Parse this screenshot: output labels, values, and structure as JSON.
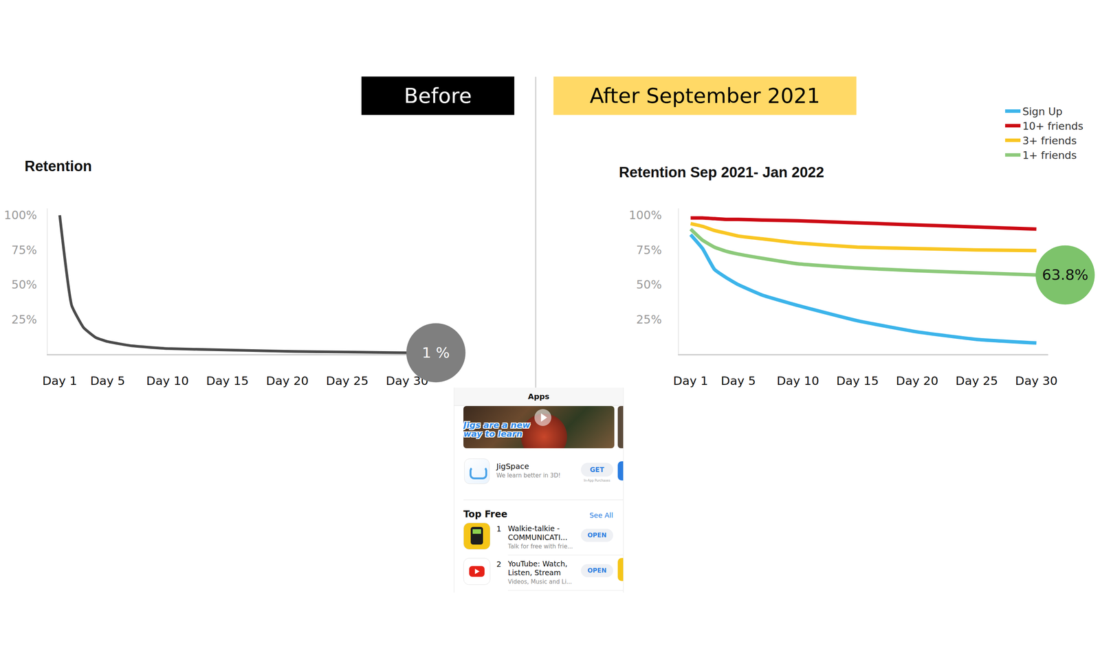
{
  "chart_data": [
    {
      "type": "line",
      "header": "Before",
      "title": "Retention",
      "x": [
        1,
        2,
        3,
        4,
        5,
        7,
        10,
        15,
        20,
        25,
        30
      ],
      "values": [
        100,
        35,
        19,
        12,
        9,
        6,
        4,
        3,
        2,
        1.5,
        1
      ],
      "color": "#4a4a4a",
      "xlim": [
        0,
        31
      ],
      "xticks": [
        {
          "value": 1,
          "label": "Day 1"
        },
        {
          "value": 5,
          "label": "Day 5"
        },
        {
          "value": 10,
          "label": "Day 10"
        },
        {
          "value": 15,
          "label": "Day 15"
        },
        {
          "value": 20,
          "label": "Day 20"
        },
        {
          "value": 25,
          "label": "Day 25"
        },
        {
          "value": 30,
          "label": "Day 30"
        }
      ],
      "ylim": [
        0,
        105
      ],
      "yticks": [
        {
          "value": 25,
          "label": "25%"
        },
        {
          "value": 50,
          "label": "50%"
        },
        {
          "value": 75,
          "label": "75%"
        },
        {
          "value": 100,
          "label": "100%"
        }
      ],
      "grid": false,
      "annotations": [
        {
          "text": "1 %",
          "color": "#7f7f7f"
        }
      ]
    },
    {
      "type": "line",
      "header": "After September 2021",
      "title": "Retention Sep 2021- Jan 2022",
      "x": [
        1,
        2,
        3,
        4,
        5,
        7,
        10,
        15,
        20,
        25,
        30
      ],
      "series": [
        {
          "name": "Sign Up",
          "color": "#3cb4ea",
          "values": [
            86,
            76,
            61,
            55,
            50,
            42.5,
            35,
            24,
            16,
            10.6,
            8
          ]
        },
        {
          "name": "10+ friends",
          "color": "#cc0a14",
          "values": [
            98,
            98,
            97.5,
            97,
            97,
            96.5,
            96,
            94.5,
            93,
            91.5,
            90
          ]
        },
        {
          "name": "3+ friends",
          "color": "#f9c623",
          "values": [
            94,
            92,
            89,
            87,
            85,
            83,
            80,
            77,
            76,
            75,
            74.5
          ]
        },
        {
          "name": "1+ friends",
          "color": "#8cc97a",
          "values": [
            90,
            82,
            77,
            74,
            72,
            69,
            65,
            62,
            60,
            58.5,
            57
          ]
        }
      ],
      "xlim": [
        0,
        31
      ],
      "xticks": [
        {
          "value": 1,
          "label": "Day 1"
        },
        {
          "value": 5,
          "label": "Day 5"
        },
        {
          "value": 10,
          "label": "Day 10"
        },
        {
          "value": 15,
          "label": "Day 15"
        },
        {
          "value": 20,
          "label": "Day 20"
        },
        {
          "value": 25,
          "label": "Day 25"
        },
        {
          "value": 30,
          "label": "Day 30"
        }
      ],
      "ylim": [
        0,
        105
      ],
      "yticks": [
        {
          "value": 25,
          "label": "25%"
        },
        {
          "value": 50,
          "label": "50%"
        },
        {
          "value": 75,
          "label": "75%"
        },
        {
          "value": 100,
          "label": "100%"
        }
      ],
      "grid": false,
      "legend": "top right",
      "annotations": [
        {
          "text": "63.8%",
          "series": "1+ friends",
          "color": "#7dc36b"
        }
      ]
    }
  ],
  "inset": {
    "header": "Apps",
    "banner": "Jigs are a new way to learn",
    "featured": {
      "name": "JigSpace",
      "subtitle": "We learn better in 3D!",
      "button": "GET",
      "note": "In-App Purchases"
    },
    "section": {
      "title": "Top Free",
      "link": "See All",
      "rows": [
        {
          "rank": 1,
          "name": "Walkie-talkie - COMMUNICATI...",
          "subtitle": "Talk for free with frie...",
          "button": "OPEN"
        },
        {
          "rank": 2,
          "name": "YouTube: Watch, Listen, Stream",
          "subtitle": "Videos, Music and Li...",
          "button": "OPEN"
        }
      ]
    }
  }
}
